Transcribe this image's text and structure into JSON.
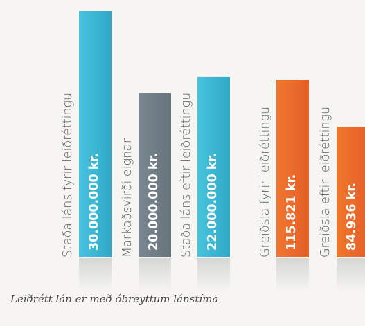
{
  "chart_data": {
    "type": "bar",
    "title": "",
    "xlabel": "",
    "ylabel": "",
    "groups": [
      {
        "bars": [
          {
            "label": "Staða láns fyrir leiðréttingu",
            "value": 30000000,
            "value_label": "30.000.000 kr."
          },
          {
            "label": "Markaðsvirði eignar",
            "value": 20000000,
            "value_label": "20.000.000 kr."
          },
          {
            "label": "Staða láns eftir leiðréttingu",
            "value": 22000000,
            "value_label": "22.000.000 kr."
          }
        ]
      },
      {
        "bars": [
          {
            "label": "Greiðsla fyrir leiðréttingu",
            "value": 115821,
            "value_label": "115.821 kr."
          },
          {
            "label": "Greiðsla eftir leiðréttingu",
            "value": 84936,
            "value_label": "84.936 kr."
          }
        ]
      }
    ],
    "colors": {
      "loan": "#3ab3cf",
      "market": "#6e7b84",
      "payment": "#ea6a2c"
    },
    "caption": "Leiðrétt lán er með óbreyttum lánstíma"
  }
}
